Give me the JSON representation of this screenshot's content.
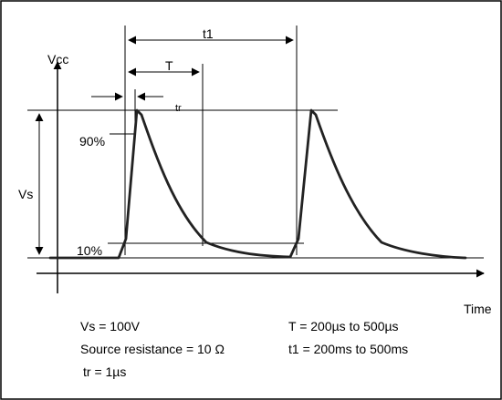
{
  "labels": {
    "vcc": "Vcc",
    "vs": "Vs",
    "pct90": "90%",
    "pct10": "10%",
    "t1": "t1",
    "T": "T",
    "tr": "tr",
    "time": "Time"
  },
  "notes": {
    "vs": "Vs = 100V",
    "resistance": "Source resistance = 10 Ω",
    "tr": "tr = 1µs",
    "T": "T = 200µs to 500µs",
    "t1": "t1 = 200ms to 500ms"
  }
}
